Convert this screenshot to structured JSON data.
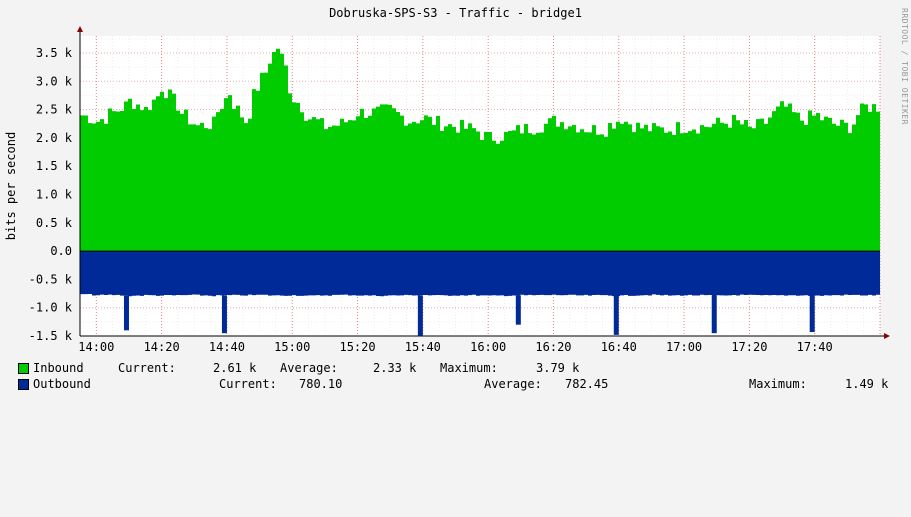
{
  "title": "Dobruska-SPS-S3 - Traffic - bridge1",
  "watermark": "RRDTOOL / TOBI OETIKER",
  "colors": {
    "inbound": "#00cc00",
    "outbound": "#002a97",
    "background": "#f3f3f3",
    "canvas": "#ffffff",
    "grid": "#e6a0a0",
    "zero_line": "#000000",
    "axis_arrow": "#880000"
  },
  "legend": {
    "inbound": {
      "name": "Inbound",
      "current_label": "Current:",
      "current": "2.61 k",
      "average_label": "Average:",
      "average": "2.33 k",
      "maximum_label": "Maximum:",
      "maximum": "3.79 k"
    },
    "outbound": {
      "name": "Outbound",
      "current_label": "Current:",
      "current": "780.10",
      "average_label": "Average:",
      "average": "782.45",
      "maximum_label": "Maximum:",
      "maximum": "1.49 k"
    }
  },
  "chart_data": {
    "type": "area",
    "title": "Dobruska-SPS-S3 - Traffic - bridge1",
    "xlabel": "",
    "ylabel": "bits per second",
    "x_range": [
      "13:55",
      "18:00"
    ],
    "ylim": [
      -1500,
      3800
    ],
    "y_ticks": [
      -1500,
      -1000,
      -500,
      0,
      500,
      1000,
      1500,
      2000,
      2500,
      3000,
      3500
    ],
    "y_tick_labels": [
      "-1.5 k",
      "-1.0 k",
      "-0.5 k",
      "0.0",
      "0.5 k",
      "1.0 k",
      "1.5 k",
      "2.0 k",
      "2.5 k",
      "3.0 k",
      "3.5 k"
    ],
    "x_ticks": [
      "14:00",
      "14:20",
      "14:40",
      "15:00",
      "15:20",
      "15:40",
      "16:00",
      "16:20",
      "16:40",
      "17:00",
      "17:20",
      "17:40"
    ],
    "grid": true,
    "legend_position": "bottom",
    "series": [
      {
        "name": "Inbound",
        "color": "#00cc00",
        "direction": "up",
        "x": [
          "13:55",
          "14:00",
          "14:05",
          "14:10",
          "14:15",
          "14:20",
          "14:25",
          "14:30",
          "14:35",
          "14:40",
          "14:45",
          "14:50",
          "14:55",
          "15:00",
          "15:05",
          "15:10",
          "15:15",
          "15:20",
          "15:25",
          "15:30",
          "15:35",
          "15:40",
          "15:45",
          "15:50",
          "15:55",
          "16:00",
          "16:05",
          "16:10",
          "16:15",
          "16:20",
          "16:25",
          "16:30",
          "16:35",
          "16:40",
          "16:45",
          "16:50",
          "16:55",
          "17:00",
          "17:05",
          "17:10",
          "17:15",
          "17:20",
          "17:25",
          "17:30",
          "17:35",
          "17:40",
          "17:45",
          "17:50",
          "17:55"
        ],
        "values": [
          2400,
          2300,
          2450,
          2650,
          2500,
          2900,
          2500,
          2200,
          2250,
          2800,
          2300,
          3050,
          3600,
          2700,
          2350,
          2200,
          2250,
          2450,
          2450,
          2500,
          2300,
          2350,
          2250,
          2200,
          2150,
          2000,
          2050,
          2150,
          2200,
          2300,
          2250,
          2150,
          2150,
          2350,
          2200,
          2150,
          2150,
          2200,
          2200,
          2250,
          2300,
          2150,
          2300,
          2600,
          2300,
          2400,
          2250,
          2200,
          2550
        ]
      },
      {
        "name": "Outbound",
        "color": "#002a97",
        "direction": "down",
        "x": [
          "13:55",
          "14:00",
          "14:05",
          "14:10",
          "14:15",
          "14:20",
          "14:25",
          "14:30",
          "14:35",
          "14:40",
          "14:45",
          "14:50",
          "14:55",
          "15:00",
          "15:05",
          "15:10",
          "15:15",
          "15:20",
          "15:25",
          "15:30",
          "15:35",
          "15:40",
          "15:45",
          "15:50",
          "15:55",
          "16:00",
          "16:05",
          "16:10",
          "16:15",
          "16:20",
          "16:25",
          "16:30",
          "16:35",
          "16:40",
          "16:45",
          "16:50",
          "16:55",
          "17:00",
          "17:05",
          "17:10",
          "17:15",
          "17:20",
          "17:25",
          "17:30",
          "17:35",
          "17:40",
          "17:45",
          "17:50",
          "17:55"
        ],
        "values": [
          760,
          780,
          775,
          790,
          780,
          785,
          780,
          775,
          790,
          780,
          780,
          775,
          785,
          780,
          790,
          780,
          775,
          780,
          790,
          785,
          780,
          775,
          785,
          780,
          780,
          790,
          785,
          780,
          780,
          775,
          780,
          785,
          780,
          790,
          780,
          775,
          785,
          780,
          780,
          790,
          775,
          780,
          785,
          780,
          780,
          790,
          780,
          775,
          780
        ],
        "spikes": [
          {
            "x": "14:10",
            "value": 1400
          },
          {
            "x": "14:40",
            "value": 1450
          },
          {
            "x": "15:40",
            "value": 1490
          },
          {
            "x": "16:10",
            "value": 1300
          },
          {
            "x": "16:40",
            "value": 1480
          },
          {
            "x": "17:10",
            "value": 1450
          },
          {
            "x": "17:40",
            "value": 1430
          }
        ]
      }
    ]
  }
}
